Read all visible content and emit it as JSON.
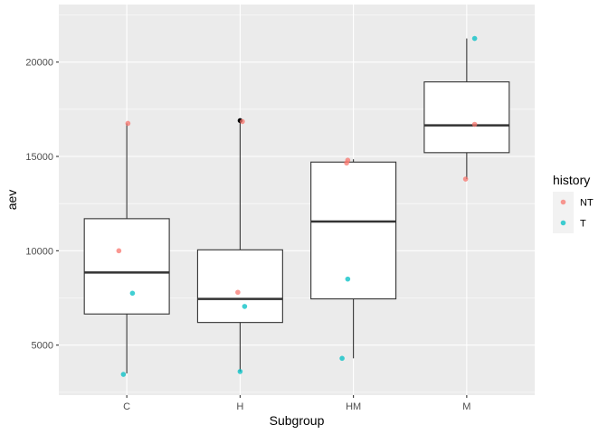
{
  "chart_data": {
    "type": "box",
    "title": "",
    "xlabel": "Subgroup",
    "ylabel": "aev",
    "categories": [
      "C",
      "H",
      "HM",
      "M"
    ],
    "ylim": [
      2350,
      23050
    ],
    "yticks": [
      5000,
      10000,
      15000,
      20000
    ],
    "ytick_labels": [
      "5000",
      "10000",
      "15000",
      "20000"
    ],
    "boxes": [
      {
        "category": "C",
        "whisker_low": 3500,
        "q1": 6650,
        "median": 8850,
        "q3": 11700,
        "whisker_high": 16750
      },
      {
        "category": "H",
        "whisker_low": 3600,
        "q1": 6200,
        "median": 7450,
        "q3": 10050,
        "whisker_high": 16900
      },
      {
        "category": "HM",
        "whisker_low": 4300,
        "q1": 7450,
        "median": 11550,
        "q3": 14700,
        "whisker_high": 14850
      },
      {
        "category": "M",
        "whisker_low": 13800,
        "q1": 15200,
        "median": 16650,
        "q3": 18950,
        "whisker_high": 21250
      }
    ],
    "outliers": [
      {
        "category": "H",
        "y": 16900
      }
    ],
    "points": [
      {
        "category": "C",
        "offset": 0.01,
        "y": 16750,
        "history": "NT"
      },
      {
        "category": "C",
        "offset": -0.07,
        "y": 10000,
        "history": "NT"
      },
      {
        "category": "C",
        "offset": 0.05,
        "y": 7750,
        "history": "T"
      },
      {
        "category": "C",
        "offset": -0.03,
        "y": 3450,
        "history": "T"
      },
      {
        "category": "H",
        "offset": 0.02,
        "y": 16850,
        "history": "NT"
      },
      {
        "category": "H",
        "offset": -0.02,
        "y": 7800,
        "history": "NT"
      },
      {
        "category": "H",
        "offset": 0.04,
        "y": 7050,
        "history": "T"
      },
      {
        "category": "H",
        "offset": 0.0,
        "y": 3600,
        "history": "T"
      },
      {
        "category": "HM",
        "offset": -0.06,
        "y": 14650,
        "history": "NT"
      },
      {
        "category": "HM",
        "offset": -0.05,
        "y": 14800,
        "history": "NT"
      },
      {
        "category": "HM",
        "offset": -0.05,
        "y": 8500,
        "history": "T"
      },
      {
        "category": "HM",
        "offset": -0.1,
        "y": 4300,
        "history": "T"
      },
      {
        "category": "M",
        "offset": 0.07,
        "y": 21250,
        "history": "T"
      },
      {
        "category": "M",
        "offset": 0.07,
        "y": 16700,
        "history": "NT"
      },
      {
        "category": "M",
        "offset": -0.01,
        "y": 13800,
        "history": "NT"
      }
    ],
    "legend": {
      "title": "history",
      "placement": "right",
      "entries": [
        {
          "label": "NT",
          "color": "#F8766D"
        },
        {
          "label": "T",
          "color": "#00BFC4"
        }
      ]
    },
    "grid": true,
    "colors": {
      "panel": "#EBEBEB",
      "grid_major": "#FFFFFF",
      "box_line": "#333333",
      "box_fill": "#FFFFFF",
      "outlier": "#000000"
    }
  }
}
